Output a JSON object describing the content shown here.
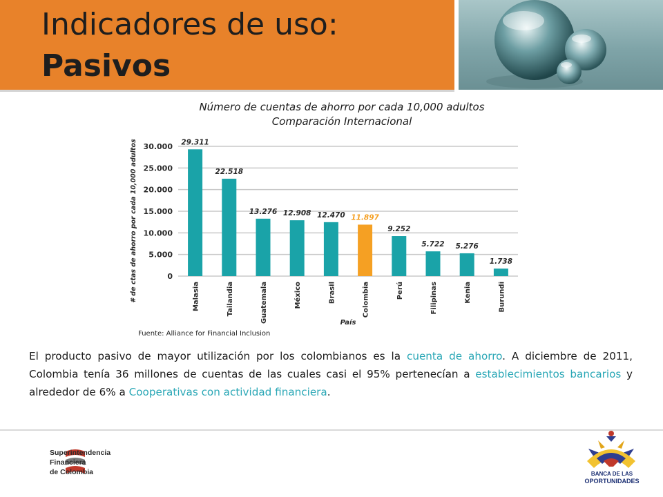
{
  "header": {
    "title_line1": "Indicadores de uso:",
    "title_line2": "Pasivos",
    "accent_color": "#e8822a"
  },
  "chart_data": {
    "type": "bar",
    "title_line1": "Número de cuentas de ahorro por cada 10,000 adultos",
    "title_line2": "Comparación Internacional",
    "xlabel": "País",
    "ylabel": "# de ctas de ahorro por cada 10,000 adultos",
    "categories": [
      "Malasia",
      "Tailandia",
      "Guatemala",
      "México",
      "Brasil",
      "Colombia",
      "Perú",
      "Filipinas",
      "Kenia",
      "Burundi"
    ],
    "values": [
      29311,
      22518,
      13276,
      12908,
      12470,
      11897,
      9252,
      5722,
      5276,
      1738
    ],
    "value_labels": [
      "29.311",
      "22.518",
      "13.276",
      "12.908",
      "12.470",
      "11.897",
      "9.252",
      "5.722",
      "5.276",
      "1.738"
    ],
    "yticks": [
      0,
      5000,
      10000,
      15000,
      20000,
      25000,
      30000
    ],
    "ytick_labels": [
      "0",
      "5.000",
      "10.000",
      "15.000",
      "20.000",
      "25.000",
      "30.000"
    ],
    "ylim": [
      0,
      30000
    ],
    "grid": true,
    "highlight_category": "Colombia",
    "bar_color": "#1aa3a8",
    "highlight_color": "#f5a023"
  },
  "source": "Fuente: Alliance for Financial Inclusion",
  "paragraph": {
    "t1": "El producto pasivo de mayor utilización por los colombianos es la ",
    "h1": "cuenta de ahorro",
    "t2": ". A diciembre de 2011, Colombia tenía 36 millones de cuentas de las cuales casi el 95% pertenecían a ",
    "h2": "establecimientos bancarios",
    "t3": " y alrededor de 6% a ",
    "h3": "Cooperativas con actividad financiera",
    "t4": ".",
    "highlight_color": "#2aa7b6"
  },
  "footer": {
    "sf_line1": "Superintendencia",
    "sf_line2": "Financiera",
    "sf_line3": "de Colombia",
    "bo_line1": "BANCA DE LAS",
    "bo_line2": "OPORTUNIDADES"
  }
}
